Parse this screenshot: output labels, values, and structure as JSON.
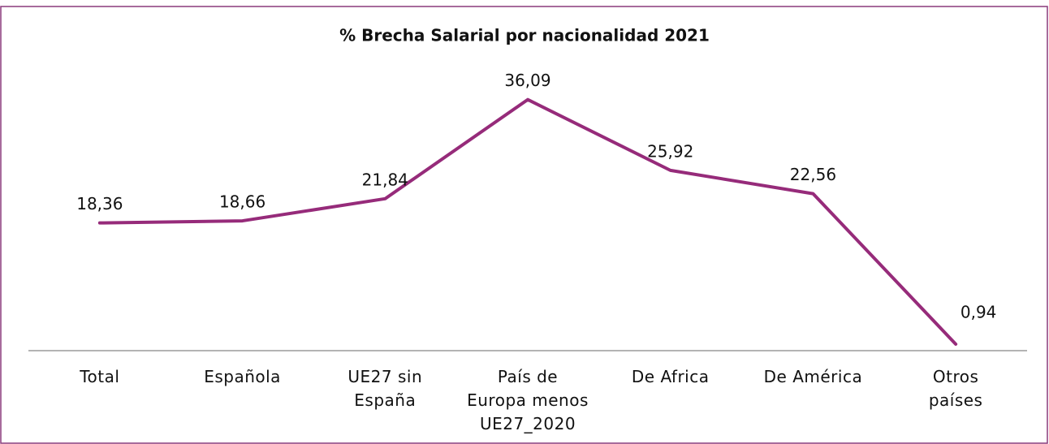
{
  "chart_data": {
    "type": "line",
    "title": "% Brecha Salarial  por nacionalidad  2021",
    "categories": [
      "Total",
      "Española",
      "UE27 sin\nEspaña",
      "País de\nEuropa menos\nUE27_2020",
      "De Africa",
      "De América",
      "Otros\npaíses"
    ],
    "series": [
      {
        "name": "% Brecha Salarial",
        "color": "#962b7a",
        "values": [
          18.36,
          18.66,
          21.84,
          36.09,
          25.92,
          22.56,
          0.94
        ],
        "value_labels": [
          "18,36",
          "18,66",
          "21,84",
          "36,09",
          "25,92",
          "22,56",
          "0,94"
        ]
      }
    ]
  }
}
